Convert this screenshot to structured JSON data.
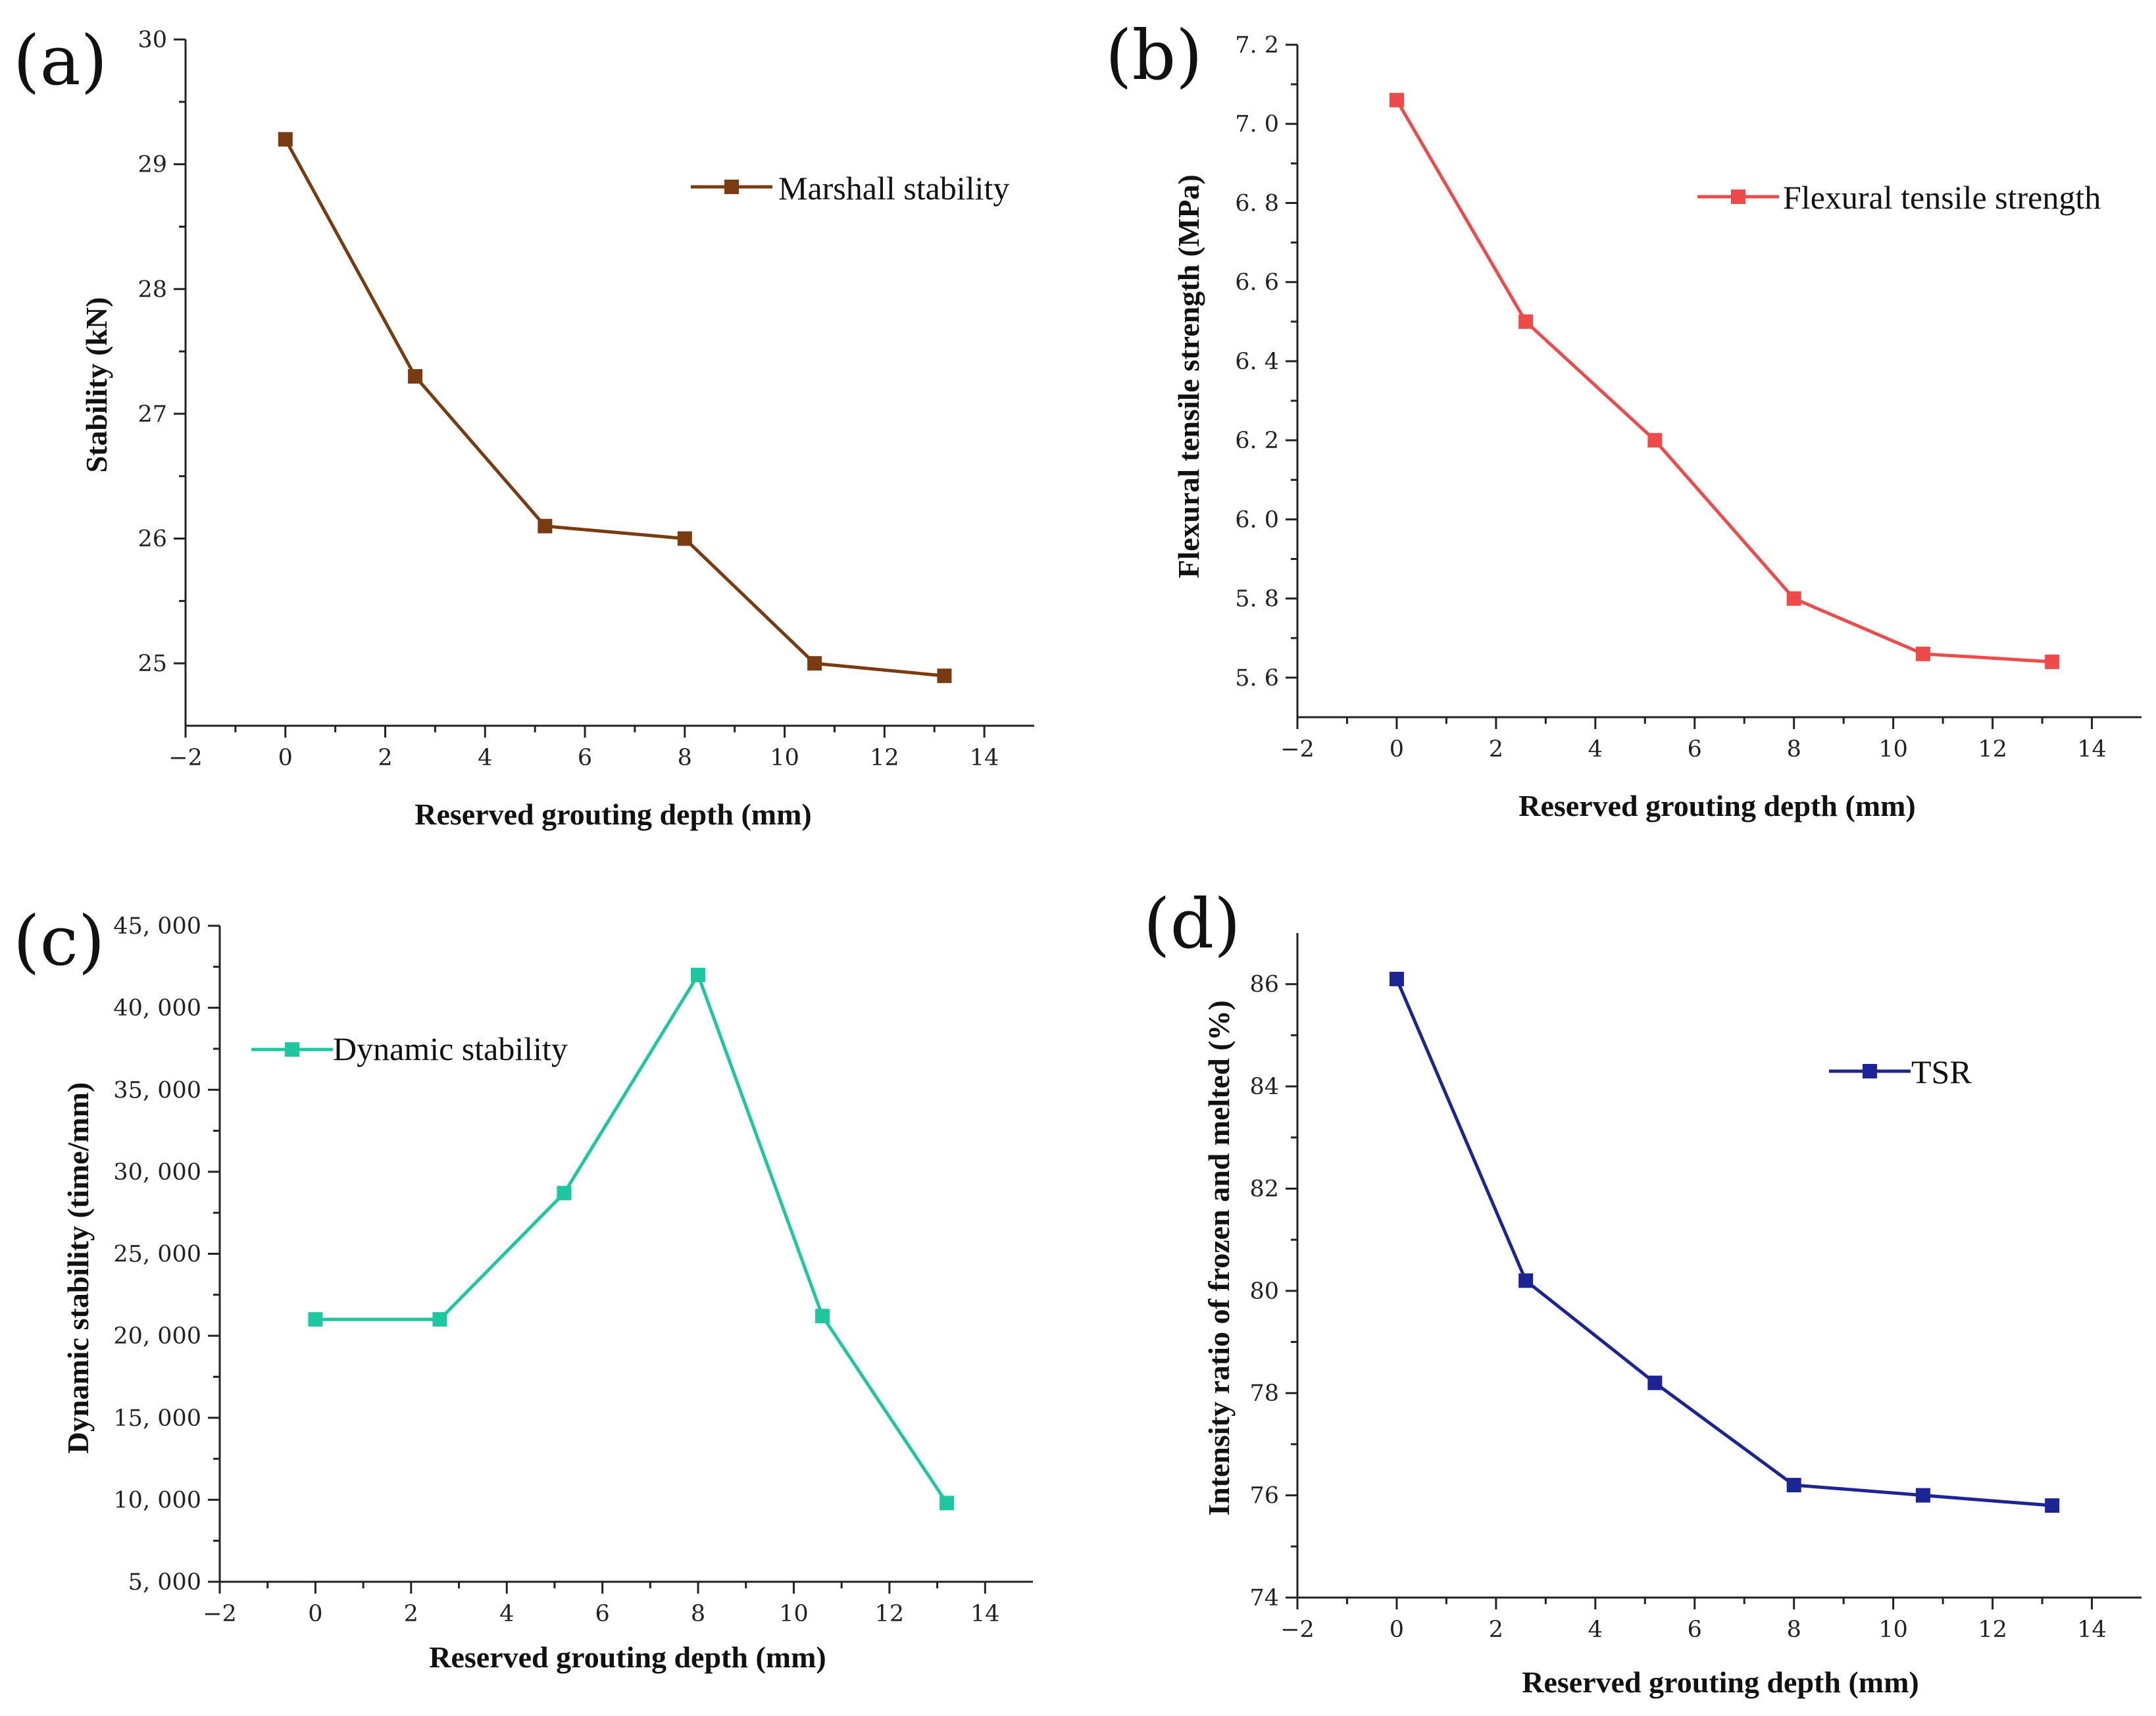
{
  "chart_data": [
    {
      "panel": "(a)",
      "type": "line",
      "xlabel": "Reserved grouting depth (mm)",
      "ylabel": "Stability (kN)",
      "xlim": [
        -2,
        15
      ],
      "ylim": [
        24.5,
        30
      ],
      "xticks": [
        -2,
        0,
        2,
        4,
        6,
        8,
        10,
        12,
        14
      ],
      "xtick_labels": [
        "−2",
        "0",
        "2",
        "4",
        "6",
        "8",
        "10",
        "12",
        "14"
      ],
      "yticks": [
        25,
        26,
        27,
        28,
        29,
        30
      ],
      "ytick_labels": [
        "25",
        "26",
        "27",
        "28",
        "29",
        "30"
      ],
      "legend_position": "top-right",
      "series": [
        {
          "name": "Marshall stability",
          "color": "#7a3b10",
          "x": [
            0,
            2.6,
            5.2,
            8,
            10.6,
            13.2
          ],
          "y": [
            29.2,
            27.3,
            26.1,
            26.0,
            25.0,
            24.9
          ]
        }
      ]
    },
    {
      "panel": "(b)",
      "type": "line",
      "xlabel": "Reserved grouting depth (mm)",
      "ylabel": "Flexural tensile strength (MPa)",
      "xlim": [
        -2,
        15
      ],
      "ylim": [
        5.5,
        7.2
      ],
      "xticks": [
        -2,
        0,
        2,
        4,
        6,
        8,
        10,
        12,
        14
      ],
      "xtick_labels": [
        "−2",
        "0",
        "2",
        "4",
        "6",
        "8",
        "10",
        "12",
        "14"
      ],
      "yticks": [
        5.6,
        5.8,
        6.0,
        6.2,
        6.4,
        6.6,
        6.8,
        7.0,
        7.2
      ],
      "ytick_labels": [
        "5. 6",
        "5. 8",
        "6. 0",
        "6. 2",
        "6. 4",
        "6. 6",
        "6. 8",
        "7. 0",
        "7. 2"
      ],
      "legend_position": "top-right",
      "series": [
        {
          "name": "Flexural tensile strength",
          "color": "#ef4a4a",
          "x": [
            0,
            2.6,
            5.2,
            8,
            10.6,
            13.2
          ],
          "y": [
            7.06,
            6.5,
            6.2,
            5.8,
            5.66,
            5.64
          ]
        }
      ]
    },
    {
      "panel": "(c)",
      "type": "line",
      "xlabel": "Reserved grouting depth (mm)",
      "ylabel": "Dynamic stability (time/mm)",
      "xlim": [
        -2,
        15
      ],
      "ylim": [
        5000,
        45000
      ],
      "xticks": [
        -2,
        0,
        2,
        4,
        6,
        8,
        10,
        12,
        14
      ],
      "xtick_labels": [
        "−2",
        "0",
        "2",
        "4",
        "6",
        "8",
        "10",
        "12",
        "14"
      ],
      "yticks": [
        5000,
        10000,
        15000,
        20000,
        25000,
        30000,
        35000,
        40000,
        45000
      ],
      "ytick_labels": [
        "5, 000",
        "10, 000",
        "15, 000",
        "20, 000",
        "25, 000",
        "30, 000",
        "35, 000",
        "40, 000",
        "45, 000"
      ],
      "legend_position": "top-left",
      "series": [
        {
          "name": "Dynamic stability",
          "color": "#1dc7a0",
          "x": [
            0,
            2.6,
            5.2,
            8,
            10.6,
            13.2
          ],
          "y": [
            21000,
            21000,
            28700,
            42000,
            21200,
            9800
          ]
        }
      ]
    },
    {
      "panel": "(d)",
      "type": "line",
      "xlabel": "Reserved grouting depth (mm)",
      "ylabel": "Intensity ratio of frozen and melted (%)",
      "xlim": [
        -2,
        15
      ],
      "ylim": [
        74,
        87
      ],
      "xticks": [
        -2,
        0,
        2,
        4,
        6,
        8,
        10,
        12,
        14
      ],
      "xtick_labels": [
        "−2",
        "0",
        "2",
        "4",
        "6",
        "8",
        "10",
        "12",
        "14"
      ],
      "yticks": [
        74,
        76,
        78,
        80,
        82,
        84,
        86
      ],
      "ytick_labels": [
        "74",
        "76",
        "78",
        "80",
        "82",
        "84",
        "86"
      ],
      "legend_position": "top-right",
      "series": [
        {
          "name": "TSR",
          "color": "#1c2496",
          "x": [
            0,
            2.6,
            5.2,
            8,
            10.6,
            13.2
          ],
          "y": [
            86.1,
            80.2,
            78.2,
            76.2,
            76.0,
            75.8
          ]
        }
      ]
    }
  ]
}
